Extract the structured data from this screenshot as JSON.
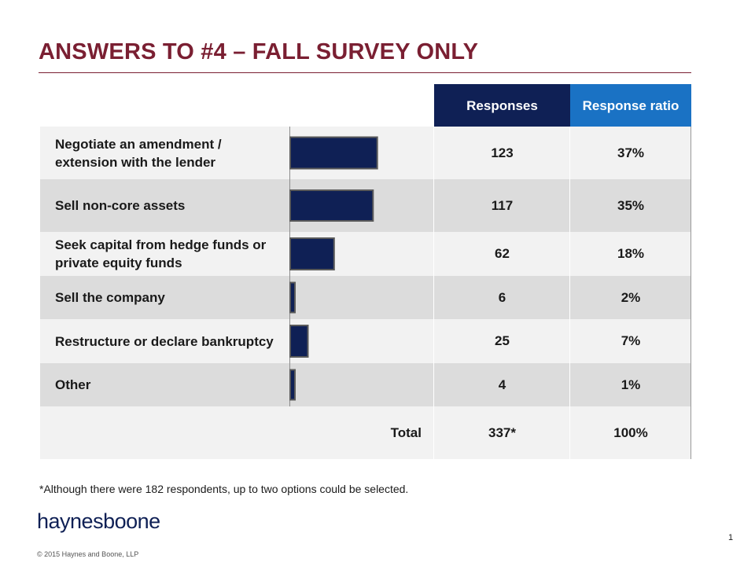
{
  "title": "ANSWERS TO #4 – FALL SURVEY ONLY",
  "chart_data": {
    "type": "bar",
    "orientation": "horizontal",
    "title": "ANSWERS TO #4 – FALL SURVEY ONLY",
    "column_headers": {
      "responses": "Responses",
      "ratio": "Response ratio"
    },
    "categories": [
      "Negotiate an amendment / extension with the lender",
      "Sell non-core assets",
      "Seek capital from hedge funds or private equity funds",
      "Sell the company",
      "Restructure or declare bankruptcy",
      "Other"
    ],
    "values": [
      123,
      117,
      62,
      6,
      25,
      4
    ],
    "ratios": [
      "37%",
      "35%",
      "18%",
      "2%",
      "7%",
      "1%"
    ],
    "value_labels": [
      "123",
      "117",
      "62",
      "6",
      "25",
      "4"
    ],
    "xlim": [
      0,
      200
    ],
    "total": {
      "label": "Total",
      "responses": "337*",
      "ratio": "100%"
    },
    "bar_color": "#0f2055",
    "bar_outline": "#5a5a5a"
  },
  "footnote": "*Although there were 182 respondents, up to two options could be selected.",
  "logo": {
    "part1": "haynes",
    "part2": "boone"
  },
  "copyright": "© 2015 Haynes and Boone, LLP",
  "page_number": "1",
  "colors": {
    "title": "#7a1f32",
    "header_dark": "#0f2055",
    "header_blue": "#1a72c4"
  }
}
